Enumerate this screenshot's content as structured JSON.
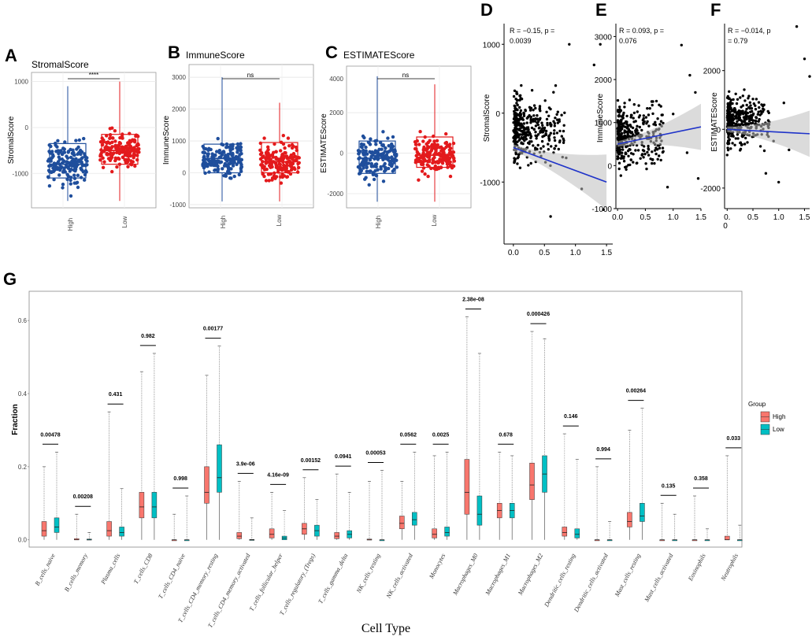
{
  "chart_data": [
    {
      "panel": "A",
      "type": "box",
      "title": "StromalScore",
      "ylabel": "StromalScore",
      "categories": [
        "High",
        "Low"
      ],
      "significance": "****",
      "yticks": [
        -1000,
        0,
        1000
      ],
      "ylim": [
        -1750,
        1200
      ],
      "series": [
        {
          "name": "High",
          "color": "#1f4e9c",
          "min": -1600,
          "q1": -1100,
          "median": -800,
          "q3": -350,
          "max": 900
        },
        {
          "name": "Low",
          "color": "#e31a1c",
          "min": -1600,
          "q1": -800,
          "median": -500,
          "q3": -150,
          "max": 1000
        }
      ]
    },
    {
      "panel": "B",
      "type": "box",
      "title": "ImmuneScore",
      "ylabel": "ImmuneScore",
      "categories": [
        "High",
        "Low"
      ],
      "significance": "ns",
      "yticks": [
        -1000,
        0,
        1000,
        2000,
        3000
      ],
      "ylim": [
        -1100,
        3400
      ],
      "series": [
        {
          "name": "High",
          "color": "#1f4e9c",
          "min": -900,
          "q1": 0,
          "median": 450,
          "q3": 900,
          "max": 3000
        },
        {
          "name": "Low",
          "color": "#e31a1c",
          "min": -900,
          "q1": 0,
          "median": 350,
          "q3": 950,
          "max": 2200
        }
      ]
    },
    {
      "panel": "C",
      "type": "box",
      "title": "ESTIMATEScore",
      "ylabel": "ESTIMATEScore",
      "categories": [
        "High",
        "Low"
      ],
      "significance": "ns",
      "yticks": [
        -2000,
        0,
        2000
      ],
      "ytick_labels": [
        "-2000",
        "0",
        "2000"
      ],
      "top_tick_label": "4000",
      "ylim": [
        -2700,
        4300
      ],
      "series": [
        {
          "name": "High",
          "color": "#1f4e9c",
          "min": -2400,
          "q1": -1000,
          "median": -250,
          "q3": 600,
          "max": 3800
        },
        {
          "name": "Low",
          "color": "#e31a1c",
          "min": -2400,
          "q1": -700,
          "median": -100,
          "q3": 800,
          "max": 3400
        }
      ]
    },
    {
      "panel": "D",
      "type": "scatter",
      "ylabel": "StromalScore",
      "annotation": [
        "R = −0.15, p =",
        "0.0039"
      ],
      "xlim": [
        -0.15,
        1.6
      ],
      "ylim": [
        -1900,
        1300
      ],
      "xticks": [
        0,
        0.5,
        1,
        1.5
      ],
      "xtick_labels": [
        "0.0",
        "0.5",
        "1.0",
        "1.5"
      ],
      "yticks": [
        1000,
        0,
        -1000
      ],
      "ytick_labels": [
        "1000",
        "0",
        "-1000"
      ],
      "fit": {
        "x0": 0.0,
        "y0": -500,
        "x1": 1.5,
        "y1": -1000
      }
    },
    {
      "panel": "E",
      "type": "scatter",
      "ylabel": "ImmuneScore",
      "annotation": [
        "R = 0.093, p =",
        "0.076"
      ],
      "xlim": [
        -0.03,
        1.5
      ],
      "ylim": [
        -1000,
        3300
      ],
      "xticks": [
        0,
        0.5,
        1,
        1.5
      ],
      "xtick_labels": [
        "0.0",
        "0.5",
        "1.0",
        "1.5"
      ],
      "yticks": [
        3000,
        2000,
        1000,
        0,
        -1000
      ],
      "ytick_labels": [
        "3000",
        "2000",
        "1000",
        "0",
        "-1000"
      ],
      "fit": {
        "x0": 0.0,
        "y0": 500,
        "x1": 1.5,
        "y1": 900
      }
    },
    {
      "panel": "F",
      "type": "scatter",
      "ylabel": "ESTIMATEScore",
      "annotation": [
        "R = −0.014, p",
        "= 0.79"
      ],
      "xlim": [
        -0.05,
        1.6
      ],
      "ylim": [
        -2700,
        3600
      ],
      "xticks": [
        0,
        0.5,
        1,
        1.5
      ],
      "xtick_labels": [
        "0.",
        "0.5",
        "1.0",
        "1.5"
      ],
      "xtick_extra": "0",
      "yticks": [
        2000,
        0,
        -2000
      ],
      "ytick_labels": [
        "2000",
        "0",
        "-2000"
      ],
      "fit": {
        "x0": 0.0,
        "y0": 0,
        "x1": 1.6,
        "y1": -150
      }
    },
    {
      "panel": "G",
      "type": "box",
      "xlabel": "Cell Type",
      "ylabel": "Fraction",
      "ylim": [
        -0.02,
        0.68
      ],
      "yticks": [
        0.0,
        0.2,
        0.4,
        0.6
      ],
      "ytick_labels": [
        "0.0",
        "0.2",
        "0.4",
        "0.6"
      ],
      "legend": {
        "title": "Group",
        "entries": [
          "High",
          "Low"
        ],
        "colors": [
          "#f8766d",
          "#00bfc4"
        ],
        "placement": "right"
      },
      "categories": [
        "B_cells_naive",
        "B_cells_memory",
        "Plasma_cells",
        "T_cells_CD8",
        "T_cells_CD4_naive",
        "T_cells_CD4_memory_resting",
        "T_cells_CD4_memory_activated",
        "T_cells_follicular_helper",
        "T_cells_regulatory_(Tregs)",
        "T_cells_gamma_delta",
        "NK_cells_resting",
        "NK_cells_activated",
        "Monocytes",
        "Macrophages_M0",
        "Macrophages_M1",
        "Macrophages_M2",
        "Dendritic_cells_resting",
        "Dendritic_cells_activated",
        "Mast_cells_resting",
        "Mast_cells_activated",
        "Eosinophils",
        "Neutrophils"
      ],
      "pvalues": [
        "0.00478",
        "0.00208",
        "0.431",
        "0.982",
        "0.998",
        "0.00177",
        "3.9e-06",
        "4.16e-09",
        "0.00152",
        "0.0941",
        "0.00053",
        "0.0562",
        "0.0025",
        "2.38e-08",
        "0.678",
        "0.000426",
        "0.146",
        "0.994",
        "0.00264",
        "0.135",
        "0.358",
        "0.033"
      ],
      "series": [
        {
          "name": "High",
          "stats": [
            [
              0,
              0.01,
              0.025,
              0.05,
              0.2
            ],
            [
              0,
              0,
              0,
              0.003,
              0.07
            ],
            [
              0,
              0.01,
              0.025,
              0.05,
              0.35
            ],
            [
              0,
              0.06,
              0.09,
              0.13,
              0.46
            ],
            [
              0,
              0,
              0,
              0,
              0.07
            ],
            [
              0,
              0.1,
              0.13,
              0.2,
              0.45
            ],
            [
              0,
              0.003,
              0.01,
              0.02,
              0.16
            ],
            [
              0,
              0.005,
              0.015,
              0.03,
              0.13
            ],
            [
              0,
              0.015,
              0.03,
              0.045,
              0.17
            ],
            [
              0,
              0.003,
              0.01,
              0.02,
              0.18
            ],
            [
              0,
              0,
              0,
              0.002,
              0.16
            ],
            [
              0,
              0.03,
              0.045,
              0.065,
              0.16
            ],
            [
              0,
              0.005,
              0.015,
              0.03,
              0.23
            ],
            [
              0,
              0.07,
              0.13,
              0.22,
              0.61
            ],
            [
              0,
              0.06,
              0.08,
              0.1,
              0.24
            ],
            [
              0,
              0.11,
              0.15,
              0.21,
              0.57
            ],
            [
              0,
              0.01,
              0.02,
              0.035,
              0.29
            ],
            [
              0,
              0,
              0,
              0,
              0.2
            ],
            [
              0,
              0.035,
              0.05,
              0.075,
              0.3
            ],
            [
              0,
              0,
              0,
              0,
              0.1
            ],
            [
              0,
              0,
              0,
              0,
              0.12
            ],
            [
              0,
              0,
              0,
              0.01,
              0.23
            ]
          ]
        },
        {
          "name": "Low",
          "stats": [
            [
              0,
              0.02,
              0.035,
              0.06,
              0.24
            ],
            [
              0,
              0,
              0,
              0.002,
              0.02
            ],
            [
              0,
              0.01,
              0.02,
              0.035,
              0.14
            ],
            [
              0,
              0.06,
              0.09,
              0.13,
              0.51
            ],
            [
              0,
              0,
              0,
              0,
              0.12
            ],
            [
              0,
              0.13,
              0.17,
              0.26,
              0.53
            ],
            [
              0,
              0,
              0,
              0.001,
              0.06
            ],
            [
              0,
              0,
              0.005,
              0.01,
              0.08
            ],
            [
              0,
              0.01,
              0.025,
              0.04,
              0.11
            ],
            [
              0,
              0.005,
              0.015,
              0.025,
              0.13
            ],
            [
              0,
              0,
              0,
              0,
              0.19
            ],
            [
              0,
              0.04,
              0.055,
              0.075,
              0.24
            ],
            [
              0,
              0.01,
              0.02,
              0.035,
              0.24
            ],
            [
              0,
              0.04,
              0.07,
              0.12,
              0.51
            ],
            [
              0,
              0.06,
              0.08,
              0.1,
              0.23
            ],
            [
              0,
              0.13,
              0.18,
              0.23,
              0.55
            ],
            [
              0,
              0.005,
              0.015,
              0.03,
              0.22
            ],
            [
              0,
              0,
              0,
              0,
              0.05
            ],
            [
              0,
              0.05,
              0.065,
              0.1,
              0.36
            ],
            [
              0,
              0,
              0,
              0,
              0.07
            ],
            [
              0,
              0,
              0,
              0,
              0.03
            ],
            [
              0,
              0,
              0,
              0,
              0.04
            ]
          ]
        }
      ]
    }
  ]
}
